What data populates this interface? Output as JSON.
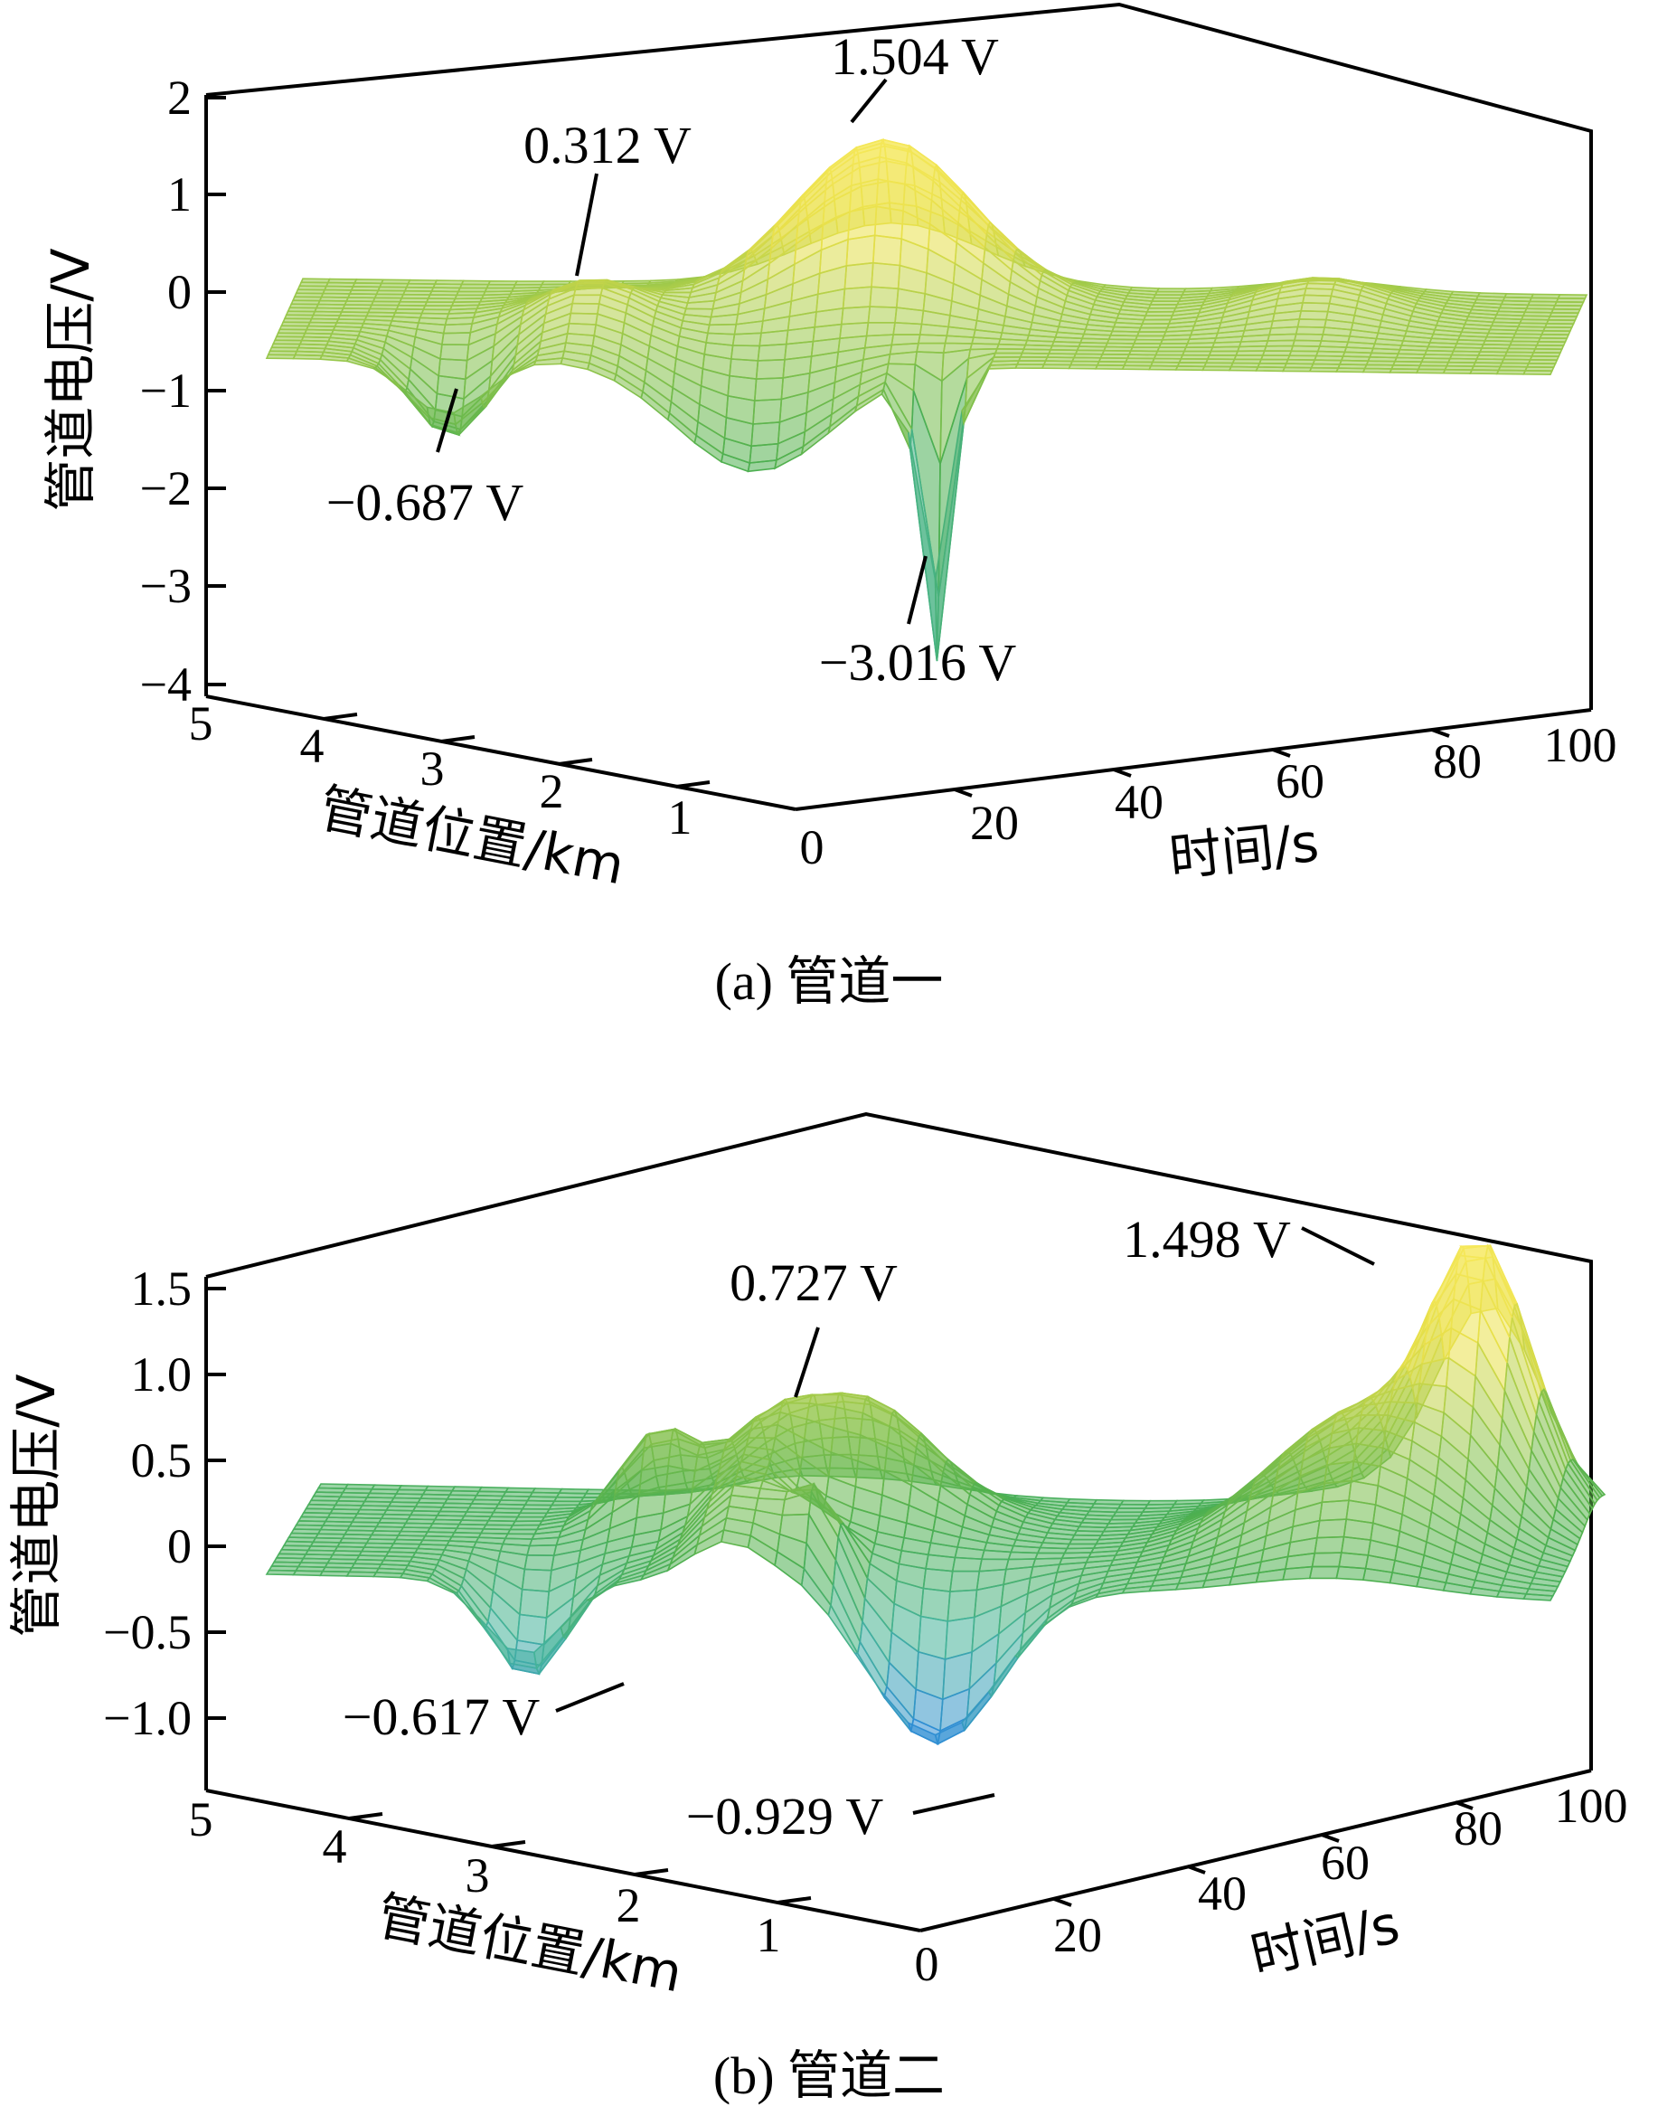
{
  "charts": [
    {
      "caption": "(a)  管道一",
      "zlabel": "管道电压/V",
      "xlabel": "管道位置/km",
      "ylabel": "时间/s",
      "z_ticks": [
        "2",
        "1",
        "0",
        "−1",
        "−2",
        "−3",
        "−4"
      ],
      "x_ticks": [
        "5",
        "4",
        "3",
        "2",
        "1",
        "0"
      ],
      "y_ticks": [
        "20",
        "40",
        "60",
        "80",
        "100"
      ],
      "annotations": [
        "1.504 V",
        "0.312 V",
        "−0.687 V",
        "−3.016 V"
      ]
    },
    {
      "caption": "(b)  管道二",
      "zlabel": "管道电压/V",
      "xlabel": "管道位置/km",
      "ylabel": "时间/s",
      "z_ticks": [
        "1.5",
        "1.0",
        "0.5",
        "0",
        "−0.5",
        "−1.0"
      ],
      "x_ticks": [
        "5",
        "4",
        "3",
        "2",
        "1",
        "0"
      ],
      "y_ticks": [
        "20",
        "40",
        "60",
        "80",
        "100"
      ],
      "annotations": [
        "1.498 V",
        "0.727 V",
        "−0.617 V",
        "−0.929 V"
      ]
    }
  ],
  "chart_data": [
    {
      "type": "surface",
      "title": "(a)  管道一",
      "xlabel": "管道位置/km",
      "ylabel": "时间/s",
      "zlabel": "管道电压/V",
      "xlim": [
        0,
        5
      ],
      "ylim": [
        0,
        100
      ],
      "zlim": [
        -4,
        2
      ],
      "z_ticks": [
        2,
        1,
        0,
        -1,
        -2,
        -3,
        -4
      ],
      "extrema": [
        {
          "label": "1.504 V",
          "value": 1.504
        },
        {
          "label": "0.312 V",
          "value": 0.312
        },
        {
          "label": "−0.687 V",
          "value": -0.687
        },
        {
          "label": "−3.016 V",
          "value": -3.016
        }
      ],
      "colormap": [
        "#2e8bd8",
        "#45b39a",
        "#4caf50",
        "#8bc34a",
        "#e8e04a",
        "#f6e85a"
      ]
    },
    {
      "type": "surface",
      "title": "(b)  管道二",
      "xlabel": "管道位置/km",
      "ylabel": "时间/s",
      "zlabel": "管道电压/V",
      "xlim": [
        0,
        5
      ],
      "ylim": [
        0,
        100
      ],
      "zlim": [
        -1.35,
        1.6
      ],
      "z_ticks": [
        1.5,
        1.0,
        0.5,
        0,
        -0.5,
        -1.0
      ],
      "extrema": [
        {
          "label": "1.498 V",
          "value": 1.498
        },
        {
          "label": "0.727 V",
          "value": 0.727
        },
        {
          "label": "−0.617 V",
          "value": -0.617
        },
        {
          "label": "−0.929 V",
          "value": -0.929
        }
      ],
      "colormap": [
        "#2e8bd8",
        "#45b39a",
        "#4caf50",
        "#8bc34a",
        "#e8e04a",
        "#f6e85a"
      ]
    }
  ]
}
